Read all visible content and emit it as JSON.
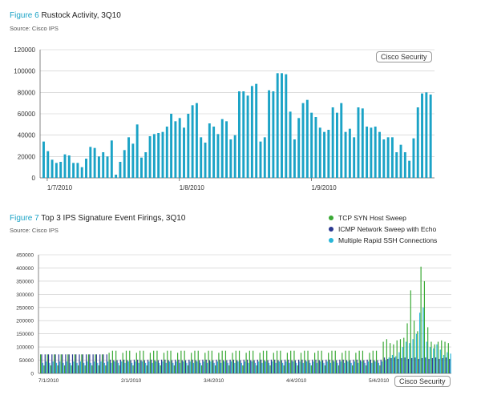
{
  "figure6": {
    "label": "Figure 6",
    "title": "Rustock Activity, 3Q10",
    "source": "Source: Cisco IPS",
    "watermark": "Cisco Security"
  },
  "figure7": {
    "label": "Figure 7",
    "title": "Top 3 IPS Signature Event Firings, 3Q10",
    "source": "Source: Cisco IPS",
    "watermark": "Cisco Security"
  },
  "colors": {
    "bar_blue": "#1ba3c6",
    "green": "#3aa935",
    "navy": "#2b3990",
    "cyan": "#29b6d8"
  },
  "chart_data": [
    {
      "type": "bar",
      "title": "Rustock Activity, 3Q10",
      "ylim": [
        0,
        120000
      ],
      "y_ticks": [
        "0",
        "20000",
        "40000",
        "60000",
        "80000",
        "100000",
        "120000"
      ],
      "x_ticks": [
        "1/7/2010",
        "1/8/2010",
        "1/9/2010"
      ],
      "grid": true,
      "values": [
        34000,
        25000,
        17000,
        14000,
        15000,
        22000,
        21000,
        14000,
        14000,
        10000,
        18000,
        29000,
        28000,
        20000,
        24000,
        20000,
        35000,
        3000,
        15000,
        26000,
        38000,
        32000,
        50000,
        19000,
        24000,
        39000,
        41000,
        42000,
        43000,
        48000,
        60000,
        53000,
        56000,
        47000,
        60000,
        68000,
        70000,
        38000,
        33000,
        51000,
        48000,
        41000,
        55000,
        53000,
        36000,
        40000,
        81000,
        81000,
        77000,
        86000,
        88000,
        34000,
        38000,
        82000,
        81000,
        98000,
        98000,
        97000,
        62000,
        36000,
        56000,
        70000,
        73000,
        61000,
        57000,
        47000,
        43000,
        45000,
        66000,
        61000,
        70000,
        43000,
        46000,
        38000,
        66000,
        65000,
        48000,
        47000,
        48000,
        43000,
        36000,
        38000,
        38000,
        24000,
        31000,
        24000,
        16000,
        37000,
        66000,
        79000,
        80000,
        78000
      ]
    },
    {
      "type": "bar",
      "title": "Top 3 IPS Signature Event Firings, 3Q10",
      "ylim": [
        0,
        450000
      ],
      "y_ticks": [
        "0",
        "50000",
        "100000",
        "150000",
        "200000",
        "250000",
        "300000",
        "350000",
        "400000",
        "450000"
      ],
      "x_ticks": [
        "7/1/2010",
        "2/1/2010",
        "3/4/2010",
        "4/4/2010",
        "5/4/2010"
      ],
      "grid": true,
      "series": [
        {
          "name": "TCP SYN Host Sweep",
          "values": [
            72000,
            30000,
            72000,
            30000,
            72000,
            30000,
            72000,
            30000,
            72000,
            30000,
            72000,
            30000,
            72000,
            30000,
            72000,
            30000,
            72000,
            30000,
            72000,
            30000,
            78000,
            86000,
            86000,
            30000,
            78000,
            86000,
            86000,
            30000,
            78000,
            86000,
            86000,
            30000,
            78000,
            86000,
            86000,
            30000,
            78000,
            86000,
            86000,
            30000,
            78000,
            86000,
            86000,
            30000,
            78000,
            86000,
            86000,
            30000,
            78000,
            86000,
            86000,
            30000,
            78000,
            86000,
            86000,
            30000,
            78000,
            86000,
            86000,
            30000,
            78000,
            86000,
            86000,
            30000,
            78000,
            86000,
            86000,
            30000,
            78000,
            86000,
            86000,
            30000,
            78000,
            86000,
            86000,
            30000,
            78000,
            86000,
            86000,
            30000,
            78000,
            86000,
            86000,
            30000,
            78000,
            86000,
            86000,
            30000,
            78000,
            86000,
            86000,
            30000,
            78000,
            86000,
            86000,
            30000,
            78000,
            86000,
            86000,
            30000,
            120000,
            130000,
            115000,
            110000,
            125000,
            130000,
            135000,
            190000,
            315000,
            200000,
            160000,
            405000,
            350000,
            175000,
            120000,
            110000,
            120000,
            125000,
            120000,
            115000
          ]
        },
        {
          "name": "ICMP Network Sweep with Echo",
          "values": [
            72000,
            72000,
            72000,
            72000,
            72000,
            72000,
            72000,
            72000,
            72000,
            72000,
            72000,
            72000,
            72000,
            72000,
            72000,
            72000,
            72000,
            72000,
            72000,
            72000,
            52000,
            50000,
            50000,
            52000,
            52000,
            50000,
            50000,
            52000,
            52000,
            50000,
            50000,
            52000,
            52000,
            50000,
            50000,
            52000,
            52000,
            50000,
            50000,
            52000,
            52000,
            50000,
            50000,
            52000,
            52000,
            50000,
            50000,
            52000,
            52000,
            50000,
            50000,
            52000,
            52000,
            50000,
            50000,
            52000,
            52000,
            50000,
            50000,
            52000,
            52000,
            50000,
            50000,
            52000,
            52000,
            50000,
            50000,
            52000,
            52000,
            50000,
            50000,
            52000,
            52000,
            50000,
            50000,
            52000,
            52000,
            50000,
            50000,
            52000,
            52000,
            50000,
            50000,
            52000,
            52000,
            50000,
            50000,
            52000,
            52000,
            50000,
            50000,
            52000,
            52000,
            50000,
            50000,
            52000,
            52000,
            50000,
            50000,
            52000,
            60000,
            55000,
            58000,
            60000,
            55000,
            58000,
            60000,
            55000,
            58000,
            60000,
            55000,
            58000,
            60000,
            55000,
            58000,
            60000,
            55000,
            58000,
            60000,
            55000
          ]
        },
        {
          "name": "Multiple Rapid SSH Connections",
          "values": [
            40000,
            45000,
            40000,
            45000,
            40000,
            45000,
            40000,
            45000,
            40000,
            45000,
            40000,
            45000,
            40000,
            45000,
            40000,
            45000,
            40000,
            45000,
            40000,
            45000,
            40000,
            45000,
            40000,
            45000,
            40000,
            45000,
            40000,
            45000,
            40000,
            45000,
            40000,
            45000,
            40000,
            45000,
            40000,
            45000,
            40000,
            45000,
            40000,
            45000,
            40000,
            45000,
            40000,
            45000,
            40000,
            45000,
            40000,
            45000,
            40000,
            45000,
            40000,
            45000,
            40000,
            45000,
            40000,
            45000,
            40000,
            45000,
            40000,
            45000,
            40000,
            45000,
            40000,
            45000,
            40000,
            45000,
            40000,
            45000,
            40000,
            45000,
            40000,
            45000,
            40000,
            45000,
            40000,
            45000,
            40000,
            45000,
            40000,
            45000,
            40000,
            45000,
            40000,
            45000,
            40000,
            45000,
            40000,
            45000,
            40000,
            45000,
            40000,
            45000,
            40000,
            45000,
            40000,
            45000,
            40000,
            45000,
            40000,
            45000,
            50000,
            60000,
            70000,
            65000,
            80000,
            100000,
            120000,
            115000,
            130000,
            150000,
            230000,
            250000,
            120000,
            100000,
            95000,
            110000,
            90000,
            70000,
            80000,
            75000
          ]
        }
      ]
    }
  ]
}
